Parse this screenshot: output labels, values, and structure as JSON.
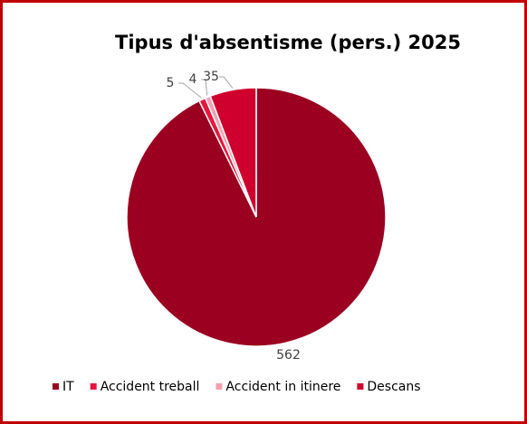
{
  "chart_data": {
    "type": "pie",
    "title": "Tipus d'absentisme (pers.) 2025",
    "categories": [
      "IT",
      "Accident treball",
      "Accident in itinere",
      "Descans"
    ],
    "values": [
      562,
      5,
      4,
      35
    ],
    "colors": [
      "#9b0020",
      "#e8163c",
      "#f4a0b0",
      "#d0002e"
    ],
    "legend": "bottom"
  }
}
